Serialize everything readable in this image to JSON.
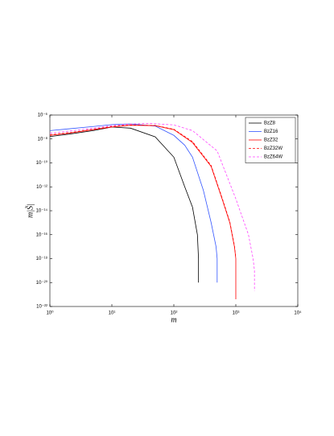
{
  "chart_data": {
    "type": "line",
    "xlabel": "m",
    "ylabel": "m|S̃|",
    "xscale": "log",
    "yscale": "log",
    "xlim": [
      1,
      10000
    ],
    "ylim": [
      1e-22,
      1e-06
    ],
    "xticks": [
      {
        "value": 1,
        "label": "10⁰"
      },
      {
        "value": 10,
        "label": "10¹"
      },
      {
        "value": 100,
        "label": "10²"
      },
      {
        "value": 1000,
        "label": "10³"
      },
      {
        "value": 10000,
        "label": "10⁴"
      }
    ],
    "yticks": [
      {
        "value": 1e-22,
        "label": "10⁻²²"
      },
      {
        "value": 1e-20,
        "label": "10⁻²⁰"
      },
      {
        "value": 1e-18,
        "label": "10⁻¹⁸"
      },
      {
        "value": 1e-16,
        "label": "10⁻¹⁶"
      },
      {
        "value": 1e-14,
        "label": "10⁻¹⁴"
      },
      {
        "value": 1e-12,
        "label": "10⁻¹²"
      },
      {
        "value": 1e-10,
        "label": "10⁻¹⁰"
      },
      {
        "value": 1e-08,
        "label": "10⁻⁸"
      },
      {
        "value": 1e-06,
        "label": "10⁻⁶"
      }
    ],
    "legend": "upper right",
    "series": [
      {
        "name": "BzZ8",
        "color": "#000000",
        "linestyle": "solid",
        "x": [
          1,
          2,
          5,
          10,
          20,
          50,
          100,
          150,
          200,
          240,
          250,
          250
        ],
        "values": [
          1.6e-08,
          2.5e-08,
          5e-08,
          1e-07,
          8e-08,
          1.5e-08,
          3e-10,
          1e-12,
          2e-14,
          1e-16,
          1e-18,
          1e-20
        ]
      },
      {
        "name": "BzZ16",
        "color": "#3355ff",
        "linestyle": "solid",
        "x": [
          1,
          2,
          5,
          10,
          20,
          50,
          100,
          150,
          200,
          300,
          400,
          480,
          500,
          500
        ],
        "values": [
          5e-08,
          7e-08,
          1.1e-07,
          1.6e-07,
          1.8e-07,
          1.2e-07,
          2e-08,
          3e-09,
          3e-10,
          5e-13,
          1e-15,
          1e-17,
          1e-18,
          1e-20
        ]
      },
      {
        "name": "BzZ32",
        "color": "#ff0000",
        "linestyle": "solid",
        "x": [
          1,
          2,
          5,
          10,
          20,
          50,
          100,
          200,
          400,
          600,
          800,
          950,
          1000,
          1000
        ],
        "values": [
          2e-08,
          3e-08,
          6e-08,
          1e-07,
          1.4e-07,
          1.3e-07,
          6e-08,
          5e-09,
          5e-11,
          1e-13,
          1e-15,
          1e-17,
          1e-18,
          4e-22
        ]
      },
      {
        "name": "BzZ32W",
        "color": "#ff0000",
        "linestyle": "dashed",
        "x": [
          1,
          2,
          5,
          10,
          20,
          50,
          100,
          200,
          400,
          600,
          800,
          950,
          1000
        ],
        "values": [
          2.2e-08,
          3.3e-08,
          6.5e-08,
          1.1e-07,
          1.5e-07,
          1.35e-07,
          6.5e-08,
          6e-09,
          6e-11,
          1.2e-13,
          1.2e-15,
          1.2e-17,
          1.2e-18
        ]
      },
      {
        "name": "BzZ64W",
        "color": "#ff44ff",
        "linestyle": "dashed",
        "x": [
          1,
          2,
          5,
          10,
          20,
          40,
          100,
          200,
          500,
          1000,
          1600,
          1900,
          2000,
          2000
        ],
        "values": [
          3e-08,
          4.5e-08,
          8e-08,
          1.3e-07,
          1.8e-07,
          2e-07,
          1.5e-07,
          5e-08,
          1e-09,
          1e-13,
          1e-16,
          1e-18,
          1e-19,
          2e-21
        ]
      }
    ]
  }
}
